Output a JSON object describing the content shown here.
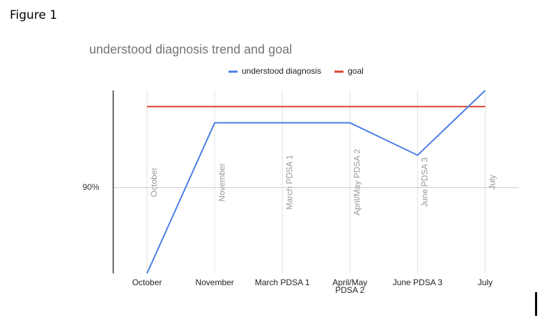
{
  "figure_label": "Figure 1",
  "chart_data": {
    "type": "line",
    "title": "understood diagnosis trend and goal",
    "categories": [
      "October",
      "November",
      "March PDSA 1",
      "April/May PDSA 2",
      "June PDSA 3",
      "July"
    ],
    "series": [
      {
        "name": "understood diagnosis",
        "color": "#4a7ee8",
        "values": [
          84.7,
          94,
          94,
          94,
          92,
          96
        ]
      },
      {
        "name": "goal",
        "color": "#d9412f",
        "values": [
          95,
          95,
          95,
          95,
          95,
          95
        ]
      }
    ],
    "ylim": [
      84.7,
      96
    ],
    "yticks": [
      {
        "value": 90,
        "label": "90%"
      }
    ],
    "grid": true,
    "legend": "top"
  }
}
